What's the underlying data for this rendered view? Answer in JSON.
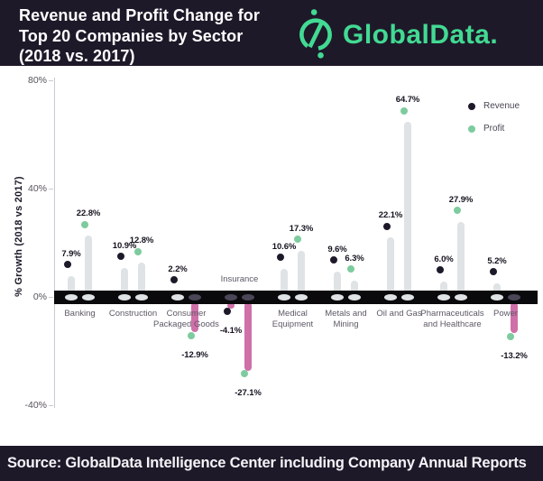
{
  "header": {
    "title_lines": [
      "Revenue and Profit Change for",
      "Top 20 Companies by Sector",
      "(2018 vs. 2017)"
    ],
    "logo_text": "GlobalData."
  },
  "footer": {
    "source_text": "Source: GlobalData Intelligence Center including Company Annual Reports"
  },
  "legend": {
    "items": [
      {
        "label": "Revenue",
        "color": "#1d1929"
      },
      {
        "label": "Profit",
        "color": "#7dcb9e"
      }
    ],
    "position": "top-right"
  },
  "colors": {
    "header_bg": "#1e1929",
    "brand_green": "#42da93",
    "revenue_ring": "#1d1929",
    "profit_ring": "#7dcb9e",
    "positive_stem": "#dfe3e5",
    "negative_stem": "#cf70a9",
    "zero_band": "#0a0a0c",
    "stem_base_dot": "#4b4657",
    "value_label": "#16121f",
    "category_label": "#5d5865",
    "tick_label": "#55515c",
    "chart_bg": "#ffffff"
  },
  "chart_data": {
    "type": "bar",
    "variant": "lollipop",
    "title": "Revenue and Profit Change for Top 20 Companies by Sector (2018 vs. 2017)",
    "ylabel": "% Growth (2018 vs 2017)",
    "ylim": [
      -40,
      80
    ],
    "yticks": [
      {
        "value": 80,
        "label": "80%"
      },
      {
        "value": 40,
        "label": "40%"
      },
      {
        "value": 0,
        "label": "0%"
      },
      {
        "value": -40,
        "label": "-40%"
      }
    ],
    "grid": false,
    "legend_position": "top-right",
    "categories": [
      {
        "name": "Banking",
        "label_lines": [
          "Banking"
        ],
        "label_above_axis": false
      },
      {
        "name": "Construction",
        "label_lines": [
          "Construction"
        ],
        "label_above_axis": false
      },
      {
        "name": "Consumer Packaged Goods",
        "label_lines": [
          "Consumer",
          "Packaged Goods"
        ],
        "label_above_axis": false
      },
      {
        "name": "Insurance",
        "label_lines": [
          "Insurance"
        ],
        "label_above_axis": true
      },
      {
        "name": "Medical Equipment",
        "label_lines": [
          "Medical",
          "Equipment"
        ],
        "label_above_axis": false
      },
      {
        "name": "Metals and Mining",
        "label_lines": [
          "Metals and",
          "Mining"
        ],
        "label_above_axis": false
      },
      {
        "name": "Oil and Gas",
        "label_lines": [
          "Oil and Gas"
        ],
        "label_above_axis": false
      },
      {
        "name": "Pharmaceuticals and Healthcare",
        "label_lines": [
          "Pharmaceuticals",
          "and Healthcare"
        ],
        "label_above_axis": false
      },
      {
        "name": "Power",
        "label_lines": [
          "Power"
        ],
        "label_above_axis": false
      }
    ],
    "series": [
      {
        "name": "Revenue",
        "values": [
          7.9,
          10.9,
          2.2,
          -4.1,
          10.6,
          9.6,
          22.1,
          6.0,
          5.2
        ],
        "labels": [
          "7.9%",
          "10.9%",
          "2.2%",
          "-4.1%",
          "10.6%",
          "9.6%",
          "22.1%",
          "6.0%",
          "5.2%"
        ]
      },
      {
        "name": "Profit",
        "values": [
          22.8,
          12.8,
          -12.9,
          -27.1,
          17.3,
          6.3,
          64.7,
          27.9,
          -13.2
        ],
        "labels": [
          "22.8%",
          "12.8%",
          "-12.9%",
          "-27.1%",
          "17.3%",
          "6.3%",
          "64.7%",
          "27.9%",
          "-13.2%"
        ]
      }
    ]
  }
}
